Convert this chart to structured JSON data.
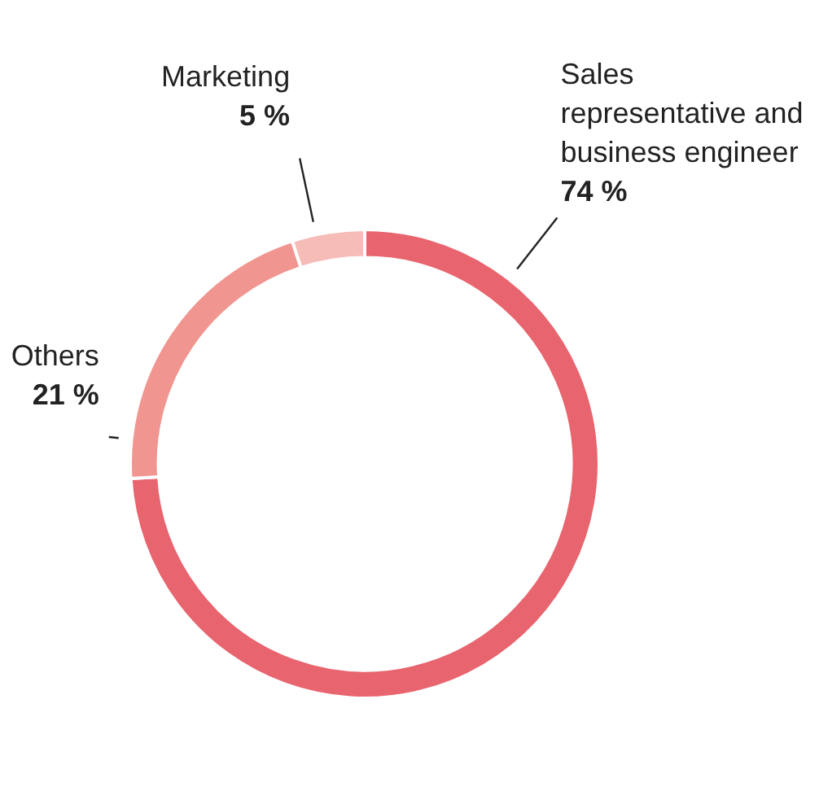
{
  "chart_data": {
    "type": "donut",
    "categories": [
      "Sales representative and business engineer",
      "Others",
      "Marketing"
    ],
    "values": [
      74,
      21,
      5
    ],
    "colors": [
      "#e8646e",
      "#f0958f",
      "#f5bcb8"
    ],
    "value_labels": [
      "74 %",
      "21 %",
      "5 %"
    ],
    "legend": false
  }
}
